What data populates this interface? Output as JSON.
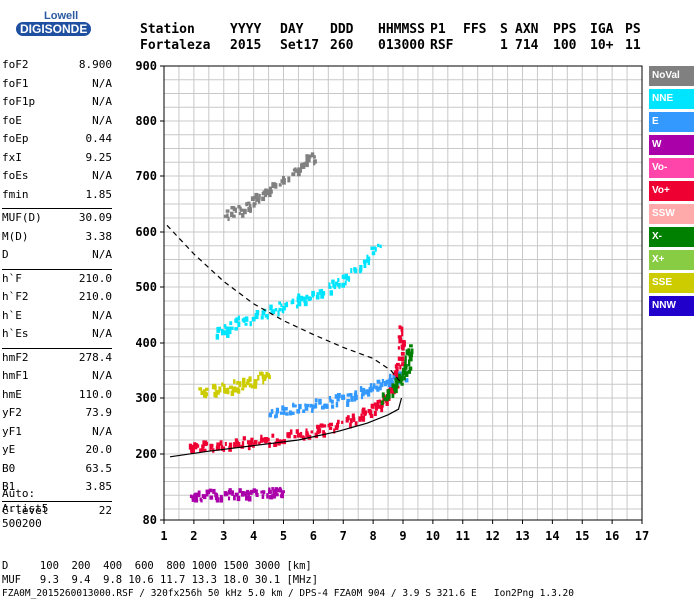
{
  "logo": {
    "line1": "Lowell",
    "line2": "DIGISONDE"
  },
  "header": {
    "row1": [
      "Station",
      "YYYY",
      "DAY",
      "DDD",
      "HHMMSS",
      "P1",
      "FFS",
      "S",
      "AXN",
      "PPS",
      "IGA",
      "PS"
    ],
    "row2": [
      "Fortaleza",
      "2015",
      "Set17",
      "260",
      "013000",
      "RSF",
      "",
      "1",
      "714",
      "100",
      "10+",
      "11"
    ]
  },
  "params": [
    {
      "k": "foF2",
      "v": "8.900"
    },
    {
      "k": "foF1",
      "v": "N/A"
    },
    {
      "k": "foF1p",
      "v": "N/A"
    },
    {
      "k": "foE",
      "v": "N/A"
    },
    {
      "k": "foEp",
      "v": "0.44"
    },
    {
      "k": "fxI",
      "v": "9.25"
    },
    {
      "k": "foEs",
      "v": "N/A"
    },
    {
      "k": "fmin",
      "v": "1.85"
    },
    {
      "k": "MUF(D)",
      "v": "30.09"
    },
    {
      "k": "M(D)",
      "v": "3.38"
    },
    {
      "k": "D",
      "v": "N/A"
    },
    {
      "k": "h`F",
      "v": "210.0"
    },
    {
      "k": "h`F2",
      "v": "210.0"
    },
    {
      "k": "h`E",
      "v": "N/A"
    },
    {
      "k": "h`Es",
      "v": "N/A"
    },
    {
      "k": "hmF2",
      "v": "278.4"
    },
    {
      "k": "hmF1",
      "v": "N/A"
    },
    {
      "k": "hmE",
      "v": "110.0"
    },
    {
      "k": "yF2",
      "v": "73.9"
    },
    {
      "k": "yF1",
      "v": "N/A"
    },
    {
      "k": "yE",
      "v": "20.0"
    },
    {
      "k": "B0",
      "v": "63.5"
    },
    {
      "k": "B1",
      "v": "3.85"
    },
    {
      "k": "C-level",
      "v": "22"
    }
  ],
  "auto": {
    "line1": "Auto:",
    "line2": "Artist5",
    "line3": "500200"
  },
  "legend": [
    {
      "label": "NoVal",
      "color": "#808080"
    },
    {
      "label": "NNE",
      "color": "#00e5ff"
    },
    {
      "label": "E",
      "color": "#3399ff"
    },
    {
      "label": "W",
      "color": "#aa00aa"
    },
    {
      "label": "Vo-",
      "color": "#ff44aa"
    },
    {
      "label": "Vo+",
      "color": "#ee0033"
    },
    {
      "label": "SSW",
      "color": "#ffaaaa"
    },
    {
      "label": "X-",
      "color": "#008000"
    },
    {
      "label": "X+",
      "color": "#88cc44"
    },
    {
      "label": "SSE",
      "color": "#cccc00"
    },
    {
      "label": "NNW",
      "color": "#2200cc"
    }
  ],
  "footer": {
    "line1": "D     100  200  400  600  800 1000 1500 3000 [km]",
    "line2": "MUF   9.3  9.4  9.8 10.6 11.7 13.3 18.0 30.1 [MHz]",
    "line3": "FZA0M_2015260013000.RSF / 320fx256h 50 kHz 5.0 km / DPS-4 FZA0M 904 / 3.9 S 321.6 E   Ion2Png 1.3.20"
  },
  "chart_data": {
    "type": "scatter",
    "title": "",
    "xlabel": "",
    "ylabel": "",
    "xlim": [
      1,
      17
    ],
    "ylim": [
      80,
      900
    ],
    "x_ticks": [
      "1",
      "2",
      "3",
      "4",
      "5",
      "6",
      "7",
      "8",
      "9",
      "10",
      "11",
      "12",
      "13",
      "14",
      "15",
      "16",
      "17"
    ],
    "y_ticks": [
      "80",
      "200",
      "300",
      "400",
      "500",
      "600",
      "700",
      "800",
      "900"
    ],
    "grid": true,
    "series": [
      {
        "name": "Vo+",
        "color": "#ee0033",
        "style": "trace",
        "points": [
          [
            1.8,
            215
          ],
          [
            2.5,
            218
          ],
          [
            3.5,
            222
          ],
          [
            4.5,
            228
          ],
          [
            5.5,
            238
          ],
          [
            6.5,
            250
          ],
          [
            7.5,
            268
          ],
          [
            8.2,
            290
          ],
          [
            8.6,
            320
          ],
          [
            8.85,
            370
          ],
          [
            8.95,
            430
          ]
        ]
      },
      {
        "name": "E",
        "color": "#3399ff",
        "style": "trace",
        "points": [
          [
            4.5,
            275
          ],
          [
            5.5,
            285
          ],
          [
            6.5,
            295
          ],
          [
            7.5,
            310
          ],
          [
            8.3,
            330
          ],
          [
            9.0,
            345
          ]
        ]
      },
      {
        "name": "X-",
        "color": "#008000",
        "style": "trace",
        "points": [
          [
            8.3,
            300
          ],
          [
            8.8,
            330
          ],
          [
            9.1,
            360
          ],
          [
            9.2,
            400
          ]
        ]
      },
      {
        "name": "W",
        "color": "#aa00aa",
        "style": "trace",
        "points": [
          [
            1.8,
            125
          ],
          [
            2.5,
            128
          ],
          [
            3.5,
            130
          ],
          [
            4.5,
            132
          ],
          [
            5.0,
            134
          ]
        ]
      },
      {
        "name": "NNE",
        "color": "#00e5ff",
        "style": "trace",
        "points": [
          [
            2.7,
            420
          ],
          [
            3.5,
            440
          ],
          [
            4.5,
            460
          ],
          [
            5.5,
            480
          ],
          [
            6.5,
            500
          ],
          [
            7.3,
            530
          ],
          [
            8.2,
            580
          ]
        ]
      },
      {
        "name": "SSE",
        "color": "#cccc00",
        "style": "trace",
        "points": [
          [
            2.2,
            315
          ],
          [
            3.0,
            320
          ],
          [
            3.8,
            330
          ],
          [
            4.5,
            350
          ]
        ]
      },
      {
        "name": "NoVal",
        "color": "#808080",
        "style": "trace",
        "points": [
          [
            3.0,
            630
          ],
          [
            3.8,
            650
          ],
          [
            4.5,
            680
          ],
          [
            5.5,
            720
          ],
          [
            6.0,
            740
          ]
        ]
      }
    ],
    "curves": [
      {
        "name": "profile",
        "style": "solid",
        "points": [
          [
            1.2,
            195
          ],
          [
            2.5,
            205
          ],
          [
            4.0,
            215
          ],
          [
            5.5,
            225
          ],
          [
            6.8,
            240
          ],
          [
            7.8,
            255
          ],
          [
            8.5,
            270
          ],
          [
            8.85,
            280
          ],
          [
            8.95,
            300
          ]
        ]
      },
      {
        "name": "muf",
        "style": "dashed",
        "points": [
          [
            1.1,
            612
          ],
          [
            2.0,
            560
          ],
          [
            3.0,
            510
          ],
          [
            4.0,
            470
          ],
          [
            5.0,
            440
          ],
          [
            6.0,
            415
          ],
          [
            7.0,
            392
          ],
          [
            8.0,
            372
          ],
          [
            8.6,
            350
          ],
          [
            8.9,
            330
          ]
        ]
      }
    ]
  }
}
